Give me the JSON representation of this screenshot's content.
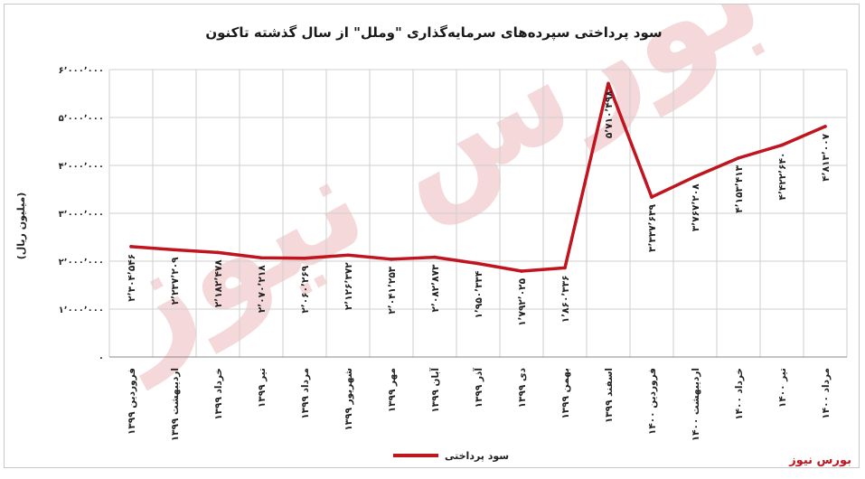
{
  "brand": "بورس نیوز",
  "watermark": "بورس نیوز",
  "chart_data": {
    "type": "line",
    "title": "سود پرداختی سپرده‌های سرمایه‌گذاری \"وملل\" از سال گذشته تاکنون",
    "ylabel": "(میلیون ریال)",
    "xlabel": "",
    "ylim": [
      0,
      6000000
    ],
    "yticks": [
      0,
      1000000,
      2000000,
      3000000,
      4000000,
      5000000,
      6000000
    ],
    "ytick_labels": [
      "۰",
      "۱٬۰۰۰٬۰۰۰",
      "۲٬۰۰۰٬۰۰۰",
      "۳٬۰۰۰٬۰۰۰",
      "۴٬۰۰۰٬۰۰۰",
      "۵٬۰۰۰٬۰۰۰",
      "۶٬۰۰۰٬۰۰۰"
    ],
    "grid": true,
    "legend": "bottom",
    "categories": [
      "فروردین ۱۳۹۹",
      "اردیبهشت ۱۳۹۹",
      "خرداد ۱۳۹۹",
      "تیر ۱۳۹۹",
      "مرداد ۱۳۹۹",
      "شهریور ۱۳۹۹",
      "مهر ۱۳۹۹",
      "آبان ۱۳۹۹",
      "آذر ۱۳۹۹",
      "دی ۱۳۹۹",
      "بهمن ۱۳۹۹",
      "اسفند ۱۳۹۹",
      "فروردین ۱۴۰۰",
      "اردیبهشت ۱۴۰۰",
      "خرداد ۱۴۰۰",
      "تیر ۱۴۰۰",
      "مرداد ۱۴۰۰"
    ],
    "series": [
      {
        "name": "سود پرداختی",
        "color": "#c0141e",
        "values": [
          2304546,
          2237209,
          2182478,
          2070218,
          2060269,
          2126372,
          2041253,
          2082873,
          1950334,
          1792025,
          1860336,
          5710498,
          3337639,
          3767208,
          4153413,
          4422640,
          4813007
        ],
        "labels": [
          "۲٬۳۰۴٬۵۴۶",
          "۲٬۲۳۷٬۲۰۹",
          "۲٬۱۸۲٬۴۷۸",
          "۲٬۰۷۰٬۲۱۸",
          "۲٬۰۶۰٬۲۶۹",
          "۲٬۱۲۶٬۳۷۲",
          "۲٬۰۴۱٬۲۵۳",
          "۲٬۰۸۲٬۸۷۳",
          "۱٬۹۵۰٬۳۳۴",
          "۱٬۷۹۲٬۰۲۵",
          "۱٬۸۶۰٬۳۳۶",
          "۵٬۷۱۰٬۴۹۸",
          "۳٬۳۳۷٬۶۳۹",
          "۳٬۷۶۷٬۲۰۸",
          "۴٬۱۵۳٬۴۱۳",
          "۴٬۴۲۲٬۶۴۰",
          "۴٬۸۱۳٬۰۰۷"
        ]
      }
    ]
  }
}
